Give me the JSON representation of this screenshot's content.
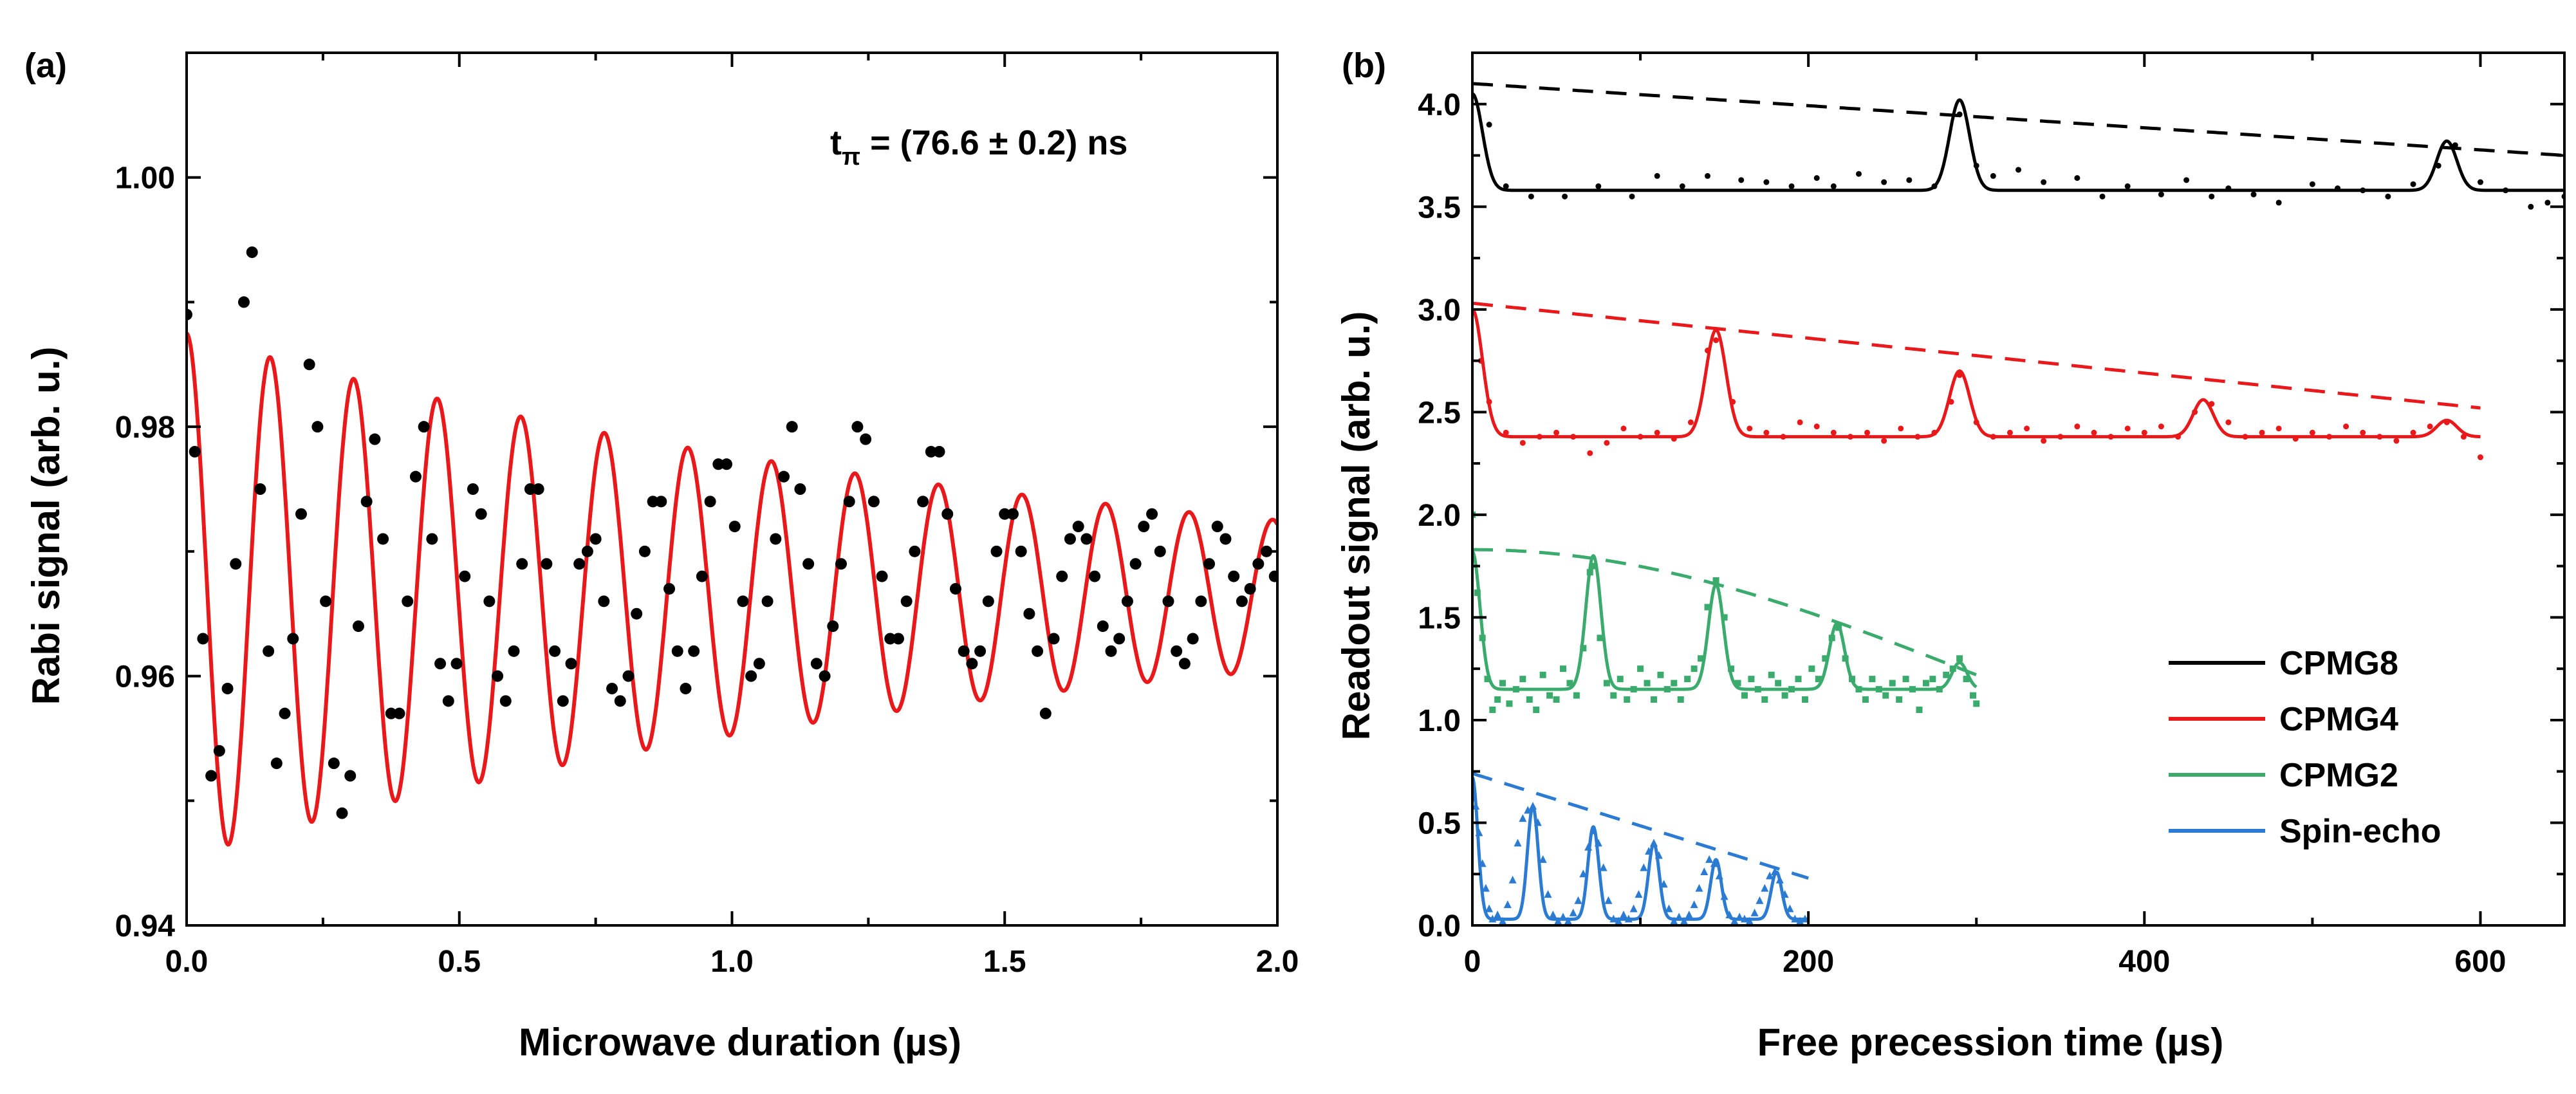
{
  "chart_data": [
    {
      "panel": "(a)",
      "type": "scatter",
      "title": "",
      "xlabel": "Microwave duration (µs)",
      "ylabel": "Rabi signal (arb. u.)",
      "xlim": [
        0.0,
        2.0
      ],
      "ylim": [
        0.94,
        1.01
      ],
      "xticks": [
        0.0,
        0.5,
        1.0,
        1.5,
        2.0
      ],
      "xtick_labels": [
        "0.0",
        "0.5",
        "1.0",
        "1.5",
        "2.0"
      ],
      "yticks": [
        0.94,
        0.96,
        0.98,
        1.0
      ],
      "ytick_labels": [
        "0.94",
        "0.96",
        "0.98",
        "1.00"
      ],
      "annotation": {
        "main": "t",
        "sub": "π",
        "rest": " = (76.6 ± 0.2) ns"
      },
      "series": [
        {
          "name": "data",
          "kind": "points",
          "color": "#000000",
          "x": [
            0.0,
            0.015,
            0.03,
            0.045,
            0.06,
            0.075,
            0.09,
            0.105,
            0.12,
            0.135,
            0.15,
            0.165,
            0.18,
            0.195,
            0.21,
            0.225,
            0.24,
            0.255,
            0.27,
            0.285,
            0.3,
            0.315,
            0.33,
            0.345,
            0.36,
            0.375,
            0.39,
            0.405,
            0.42,
            0.435,
            0.45,
            0.465,
            0.48,
            0.495,
            0.51,
            0.525,
            0.54,
            0.555,
            0.57,
            0.585,
            0.6,
            0.615,
            0.63,
            0.645,
            0.66,
            0.675,
            0.69,
            0.705,
            0.72,
            0.735,
            0.75,
            0.765,
            0.78,
            0.795,
            0.81,
            0.825,
            0.84,
            0.855,
            0.87,
            0.885,
            0.9,
            0.915,
            0.93,
            0.945,
            0.96,
            0.975,
            0.99,
            1.005,
            1.02,
            1.035,
            1.05,
            1.065,
            1.08,
            1.095,
            1.11,
            1.125,
            1.14,
            1.155,
            1.17,
            1.185,
            1.2,
            1.215,
            1.23,
            1.245,
            1.26,
            1.275,
            1.29,
            1.305,
            1.32,
            1.335,
            1.35,
            1.365,
            1.38,
            1.395,
            1.41,
            1.425,
            1.44,
            1.455,
            1.47,
            1.485,
            1.5,
            1.515,
            1.53,
            1.545,
            1.56,
            1.575,
            1.59,
            1.605,
            1.62,
            1.635,
            1.65,
            1.665,
            1.68,
            1.695,
            1.71,
            1.725,
            1.74,
            1.755,
            1.77,
            1.785,
            1.8,
            1.815,
            1.83,
            1.845,
            1.86,
            1.875,
            1.89,
            1.905,
            1.92,
            1.935,
            1.95,
            1.965,
            1.98,
            1.995
          ],
          "y": [
            0.989,
            0.978,
            0.963,
            0.952,
            0.954,
            0.959,
            0.969,
            0.99,
            0.994,
            0.975,
            0.962,
            0.953,
            0.957,
            0.963,
            0.973,
            0.985,
            0.98,
            0.966,
            0.953,
            0.949,
            0.952,
            0.964,
            0.974,
            0.979,
            0.971,
            0.957,
            0.957,
            0.966,
            0.976,
            0.98,
            0.971,
            0.961,
            0.958,
            0.961,
            0.968,
            0.975,
            0.973,
            0.966,
            0.96,
            0.958,
            0.962,
            0.969,
            0.975,
            0.975,
            0.969,
            0.962,
            0.958,
            0.961,
            0.969,
            0.97,
            0.971,
            0.966,
            0.959,
            0.958,
            0.96,
            0.965,
            0.97,
            0.974,
            0.974,
            0.967,
            0.962,
            0.959,
            0.962,
            0.968,
            0.974,
            0.977,
            0.977,
            0.972,
            0.966,
            0.96,
            0.961,
            0.966,
            0.971,
            0.976,
            0.98,
            0.975,
            0.969,
            0.961,
            0.96,
            0.964,
            0.969,
            0.974,
            0.98,
            0.979,
            0.974,
            0.968,
            0.963,
            0.963,
            0.966,
            0.97,
            0.974,
            0.978,
            0.978,
            0.973,
            0.967,
            0.962,
            0.961,
            0.962,
            0.966,
            0.97,
            0.973,
            0.973,
            0.97,
            0.965,
            0.962,
            0.957,
            0.963,
            0.968,
            0.971,
            0.972,
            0.971,
            0.968,
            0.964,
            0.962,
            0.963,
            0.966,
            0.969,
            0.972,
            0.973,
            0.97,
            0.966,
            0.962,
            0.961,
            0.963,
            0.966,
            0.969,
            0.972,
            0.971,
            0.968,
            0.966,
            0.967,
            0.969,
            0.97,
            0.968
          ]
        },
        {
          "name": "Rabi fit",
          "kind": "line",
          "color": "#e8181b",
          "model": "damped cosine",
          "offset": 0.9665,
          "amplitude": 0.021,
          "decay_us": 1.6,
          "period_us": 0.1532,
          "x_range": [
            0.0,
            2.0
          ]
        }
      ]
    },
    {
      "panel": "(b)",
      "type": "scatter",
      "title": "",
      "xlabel": "Free precession time (µs)",
      "ylabel": "Readout signal (arb. u.)",
      "xlim": [
        0,
        650
      ],
      "ylim": [
        0.0,
        4.25
      ],
      "xticks": [
        0,
        200,
        400,
        600
      ],
      "xtick_labels": [
        "0",
        "200",
        "400",
        "600"
      ],
      "yticks": [
        0.0,
        0.5,
        1.0,
        1.5,
        2.0,
        2.5,
        3.0,
        3.5,
        4.0
      ],
      "ytick_labels": [
        "0.0",
        "0.5",
        "1.0",
        "1.5",
        "2.0",
        "2.5",
        "3.0",
        "3.5",
        "4.0"
      ],
      "legend_position": "bottom-right",
      "series": [
        {
          "name": "CPMG8",
          "color": "#000000",
          "marker": "dot",
          "t_max": 650,
          "baseline": 3.58,
          "echo_times": [
            0,
            290,
            580
          ],
          "peak_values": [
            4.05,
            4.02,
            3.82
          ],
          "peak_width": 6,
          "envelope_start": 4.1,
          "envelope_end": 3.75,
          "envelope_t_end": 650,
          "points_x": [
            10,
            20,
            35,
            55,
            75,
            95,
            110,
            125,
            140,
            160,
            175,
            190,
            205,
            215,
            230,
            245,
            260,
            275,
            290,
            300,
            310,
            325,
            340,
            360,
            375,
            390,
            410,
            425,
            440,
            450,
            465,
            480,
            500,
            515,
            530,
            545,
            560,
            575,
            585,
            600,
            615,
            630,
            640,
            650
          ],
          "points_y": [
            3.9,
            3.6,
            3.55,
            3.55,
            3.6,
            3.55,
            3.65,
            3.6,
            3.65,
            3.63,
            3.62,
            3.6,
            3.64,
            3.6,
            3.66,
            3.62,
            3.63,
            3.6,
            3.95,
            3.7,
            3.65,
            3.68,
            3.62,
            3.64,
            3.55,
            3.6,
            3.56,
            3.63,
            3.55,
            3.59,
            3.56,
            3.52,
            3.61,
            3.59,
            3.58,
            3.55,
            3.61,
            3.7,
            3.8,
            3.62,
            3.58,
            3.5,
            3.52,
            3.55
          ]
        },
        {
          "name": "CPMG4",
          "color": "#e8181b",
          "marker": "dot",
          "t_max": 600,
          "baseline": 2.38,
          "echo_times": [
            0,
            145,
            290,
            435,
            580
          ],
          "peak_values": [
            3.0,
            2.9,
            2.7,
            2.56,
            2.46
          ],
          "peak_width": 6,
          "envelope_start": 3.03,
          "envelope_end": 2.52,
          "envelope_t_end": 600,
          "points_x": [
            5,
            10,
            20,
            30,
            40,
            50,
            60,
            70,
            80,
            90,
            100,
            110,
            120,
            130,
            140,
            145,
            155,
            165,
            175,
            185,
            195,
            205,
            215,
            225,
            235,
            245,
            255,
            265,
            275,
            285,
            290,
            300,
            310,
            320,
            330,
            340,
            350,
            360,
            370,
            380,
            390,
            400,
            410,
            420,
            430,
            440,
            450,
            460,
            470,
            480,
            490,
            500,
            510,
            520,
            530,
            540,
            550,
            560,
            570,
            580,
            590,
            600
          ],
          "points_y": [
            2.75,
            2.55,
            2.4,
            2.35,
            2.38,
            2.4,
            2.38,
            2.3,
            2.35,
            2.42,
            2.38,
            2.4,
            2.37,
            2.45,
            2.8,
            2.85,
            2.55,
            2.42,
            2.4,
            2.38,
            2.45,
            2.43,
            2.4,
            2.38,
            2.4,
            2.36,
            2.42,
            2.38,
            2.4,
            2.55,
            2.68,
            2.45,
            2.38,
            2.4,
            2.42,
            2.36,
            2.38,
            2.43,
            2.4,
            2.38,
            2.42,
            2.4,
            2.43,
            2.38,
            2.5,
            2.54,
            2.45,
            2.38,
            2.4,
            2.42,
            2.37,
            2.4,
            2.38,
            2.43,
            2.4,
            2.38,
            2.36,
            2.4,
            2.43,
            2.45,
            2.38,
            2.28
          ]
        },
        {
          "name": "CPMG2",
          "color": "#3aab6c",
          "marker": "square",
          "t_max": 300,
          "baseline": 1.15,
          "echo_times": [
            0,
            72,
            145,
            217,
            290
          ],
          "peak_values": [
            1.82,
            1.8,
            1.66,
            1.47,
            1.28
          ],
          "peak_width": 4.5,
          "envelope_start": 1.83,
          "envelope_end": 1.22,
          "envelope_t_end": 300,
          "points_x": [
            0,
            3,
            6,
            9,
            12,
            15,
            18,
            22,
            26,
            30,
            34,
            38,
            42,
            46,
            50,
            54,
            58,
            62,
            66,
            70,
            72,
            76,
            80,
            84,
            88,
            92,
            96,
            100,
            104,
            108,
            112,
            116,
            120,
            124,
            128,
            132,
            136,
            140,
            145,
            150,
            154,
            158,
            162,
            166,
            170,
            174,
            178,
            182,
            186,
            190,
            194,
            198,
            202,
            206,
            210,
            214,
            218,
            222,
            226,
            230,
            234,
            238,
            242,
            246,
            250,
            254,
            258,
            262,
            266,
            270,
            274,
            278,
            282,
            286,
            290,
            294,
            298,
            300
          ],
          "points_y": [
            2.0,
            1.62,
            1.4,
            1.2,
            1.05,
            1.1,
            1.18,
            1.08,
            1.15,
            1.2,
            1.1,
            1.05,
            1.22,
            1.12,
            1.1,
            1.25,
            1.18,
            1.12,
            1.35,
            1.72,
            1.75,
            1.4,
            1.18,
            1.12,
            1.2,
            1.1,
            1.15,
            1.25,
            1.18,
            1.1,
            1.22,
            1.15,
            1.18,
            1.1,
            1.2,
            1.25,
            1.3,
            1.55,
            1.68,
            1.5,
            1.25,
            1.18,
            1.12,
            1.2,
            1.15,
            1.1,
            1.22,
            1.18,
            1.12,
            1.15,
            1.2,
            1.1,
            1.25,
            1.2,
            1.3,
            1.4,
            1.45,
            1.3,
            1.2,
            1.15,
            1.1,
            1.2,
            1.15,
            1.12,
            1.18,
            1.1,
            1.2,
            1.15,
            1.05,
            1.18,
            1.2,
            1.15,
            1.22,
            1.25,
            1.3,
            1.2,
            1.12,
            1.08
          ]
        },
        {
          "name": "Spin-echo",
          "color": "#2b7bd2",
          "marker": "triangle",
          "t_max": 200,
          "baseline": 0.03,
          "echo_times": [
            0,
            36,
            72,
            108,
            145,
            181
          ],
          "peak_values": [
            0.72,
            0.58,
            0.48,
            0.4,
            0.32,
            0.26
          ],
          "peak_width": 3.2,
          "envelope_start": 0.74,
          "envelope_end": 0.23,
          "envelope_t_end": 200,
          "points_x": [
            0,
            2,
            4,
            6,
            8,
            10,
            12,
            15,
            18,
            21,
            24,
            27,
            30,
            33,
            36,
            39,
            42,
            45,
            48,
            51,
            54,
            57,
            60,
            63,
            66,
            69,
            72,
            75,
            78,
            81,
            84,
            87,
            90,
            93,
            96,
            99,
            102,
            105,
            108,
            111,
            114,
            117,
            120,
            123,
            126,
            129,
            132,
            135,
            138,
            141,
            144,
            147,
            150,
            153,
            156,
            159,
            162,
            165,
            168,
            171,
            174,
            177,
            180,
            183,
            186,
            189,
            192,
            195,
            198
          ],
          "points_y": [
            0.62,
            0.58,
            0.45,
            0.3,
            0.18,
            0.08,
            0.03,
            0.05,
            0.02,
            0.1,
            0.22,
            0.4,
            0.52,
            0.56,
            0.58,
            0.5,
            0.32,
            0.15,
            0.05,
            0.02,
            0.04,
            0.02,
            0.06,
            0.12,
            0.25,
            0.38,
            0.46,
            0.4,
            0.28,
            0.12,
            0.03,
            0.02,
            0.05,
            0.03,
            0.08,
            0.15,
            0.28,
            0.36,
            0.4,
            0.34,
            0.2,
            0.08,
            0.02,
            0.04,
            0.02,
            0.05,
            0.1,
            0.18,
            0.26,
            0.32,
            0.3,
            0.24,
            0.14,
            0.05,
            0.02,
            0.04,
            0.03,
            0.02,
            0.06,
            0.12,
            0.18,
            0.24,
            0.26,
            0.22,
            0.15,
            0.08,
            0.03,
            0.02,
            0.03
          ]
        }
      ]
    }
  ]
}
